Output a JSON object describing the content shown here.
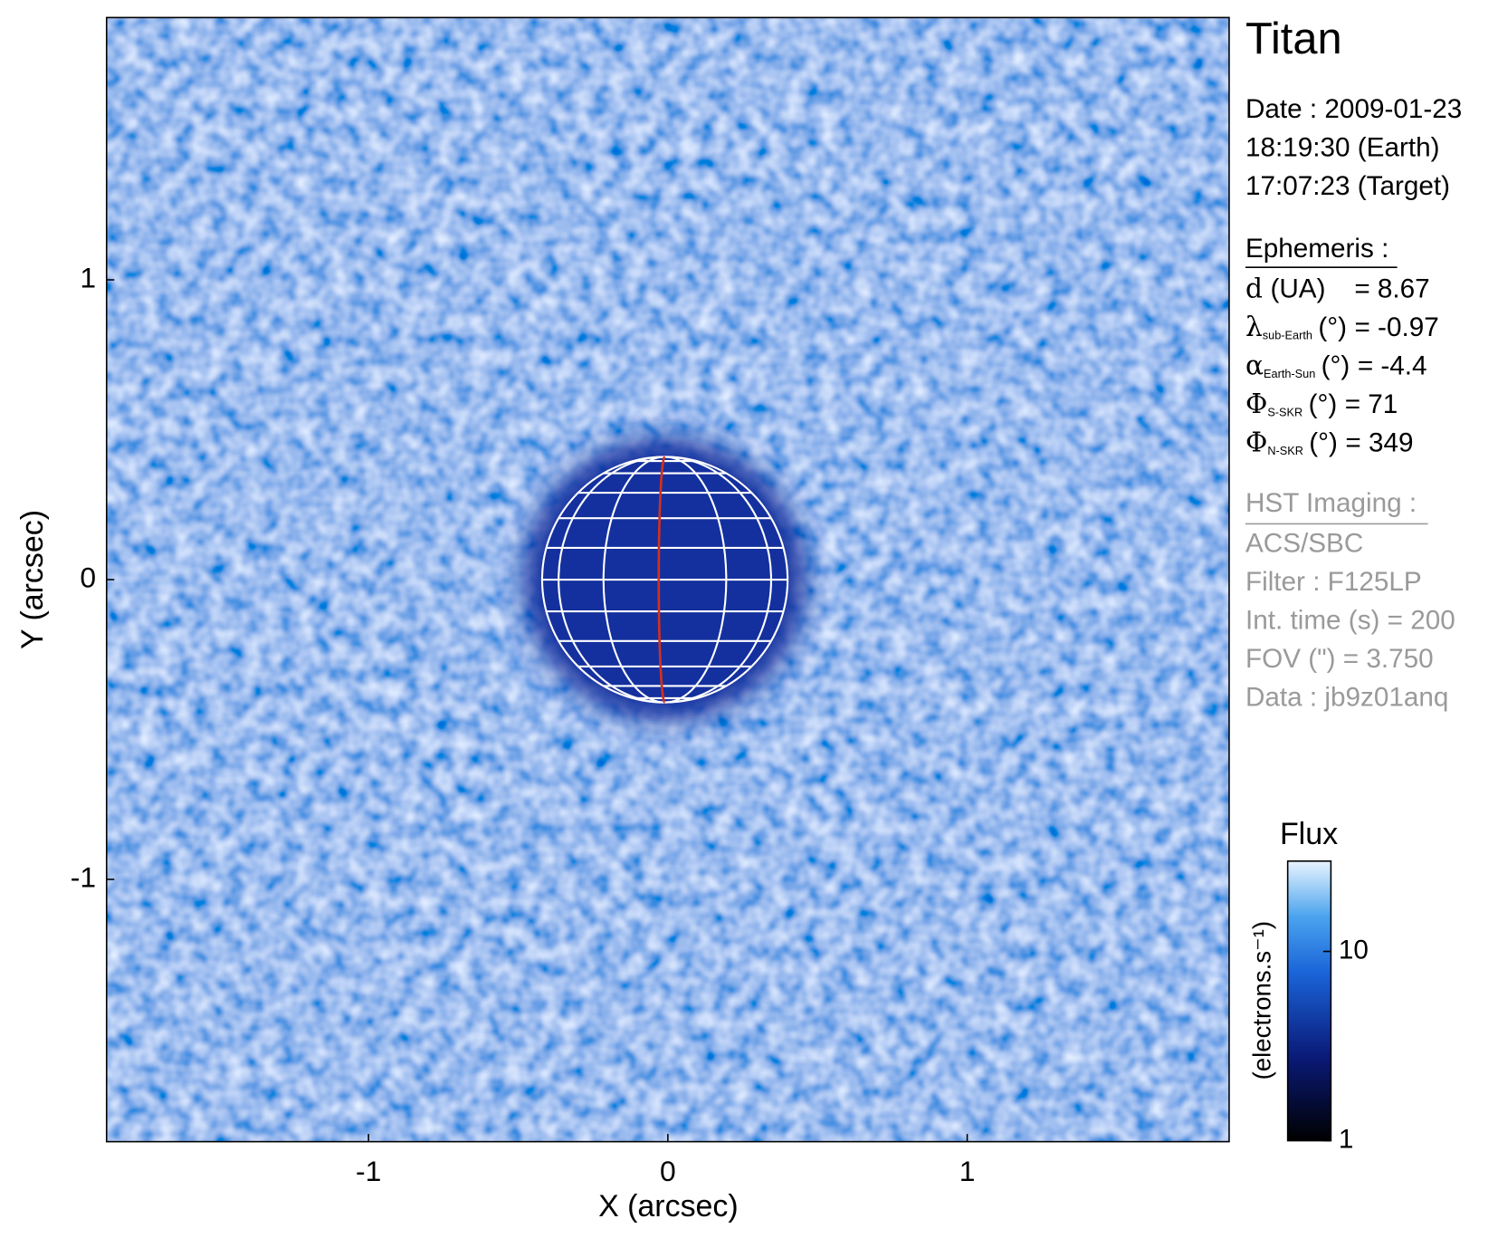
{
  "chart_data": {
    "type": "image",
    "xlabel": "X (arcsec)",
    "ylabel": "Y (arcsec)",
    "xlim": [
      -1.875,
      1.875
    ],
    "ylim": [
      -1.875,
      1.875
    ],
    "xticks": [
      -1,
      0,
      1
    ],
    "yticks": [
      -1,
      0,
      1
    ],
    "planet": {
      "x": -0.01,
      "y": 0,
      "radius": 0.41
    },
    "colorbar": {
      "title": "Flux",
      "label": "(electrons.s⁻¹)",
      "log": true,
      "lim": [
        1,
        30
      ],
      "ticks": [
        1,
        10
      ]
    }
  },
  "info": {
    "title": "Titan",
    "date": [
      "Date : 2009-01-23",
      "18:19:30 (Earth)",
      "17:07:23 (Target)"
    ],
    "ephemeris": {
      "heading": "Ephemeris :",
      "rows": [
        {
          "symbol": "d",
          "unit": "(UA)",
          "value": "= 8.67"
        },
        {
          "symbol": "λ",
          "sub": "sub-Earth",
          "unit": "(°)",
          "value": "= -0.97"
        },
        {
          "symbol": "α",
          "sub": "Earth-Sun",
          "unit": "(°)",
          "value": "= -4.4"
        },
        {
          "symbol": "Φ",
          "sub": "S-SKR",
          "unit": "(°)",
          "value": "= 71"
        },
        {
          "symbol": "Φ",
          "sub": "N-SKR",
          "unit": "(°)",
          "value": "= 349"
        }
      ]
    },
    "imaging": {
      "heading": "HST Imaging :",
      "lines": [
        "ACS/SBC",
        "Filter : F125LP",
        "Int. time (s) = 200",
        "FOV (\") = 3.750",
        "Data : jb9z01anq"
      ]
    }
  }
}
